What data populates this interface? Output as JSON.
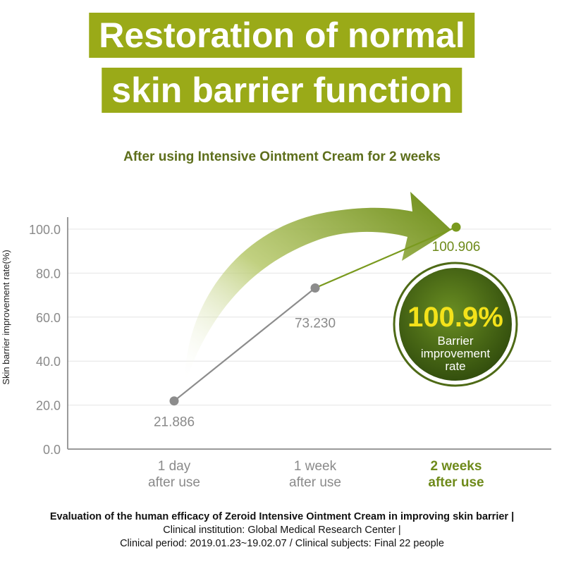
{
  "header": {
    "title_line1": "Restoration of normal",
    "title_line2": "skin barrier function",
    "subtitle": "After using Intensive Ointment Cream for 2 weeks"
  },
  "badge": {
    "value": "100.9%",
    "line1": "Barrier",
    "line2": "improvement",
    "line3": "rate"
  },
  "footer": {
    "line1": "Evaluation of the human efficacy of Zeroid Intensive Ointment Cream in improving skin barrier |",
    "line2": "Clinical institution: Global Medical Research Center |",
    "line3": "Clinical period: 2019.01.23~19.02.07 / Clinical subjects: Final 22 people"
  },
  "colors": {
    "title_bg": "#9aaa18",
    "accent": "#7a9a1e",
    "grey_point": "#8c8c8c",
    "badge_dark": "#3e5a13",
    "badge_text": "#f4e21a"
  },
  "chart_data": {
    "type": "line",
    "categories": [
      {
        "line1": "1 day",
        "line2": "after use"
      },
      {
        "line1": "1 week",
        "line2": "after use"
      },
      {
        "line1": "2 weeks",
        "line2": "after use"
      }
    ],
    "values": [
      21.886,
      73.23,
      100.906
    ],
    "data_labels": [
      "21.886",
      "73.230",
      "100.906"
    ],
    "ylabel": "Skin barrier improvement rate(%)",
    "ylim": [
      0,
      100
    ],
    "yticks": [
      "0.0",
      "20.0",
      "40.0",
      "60.0",
      "80.0",
      "100.0"
    ],
    "grid": true,
    "highlight_index": 2
  }
}
